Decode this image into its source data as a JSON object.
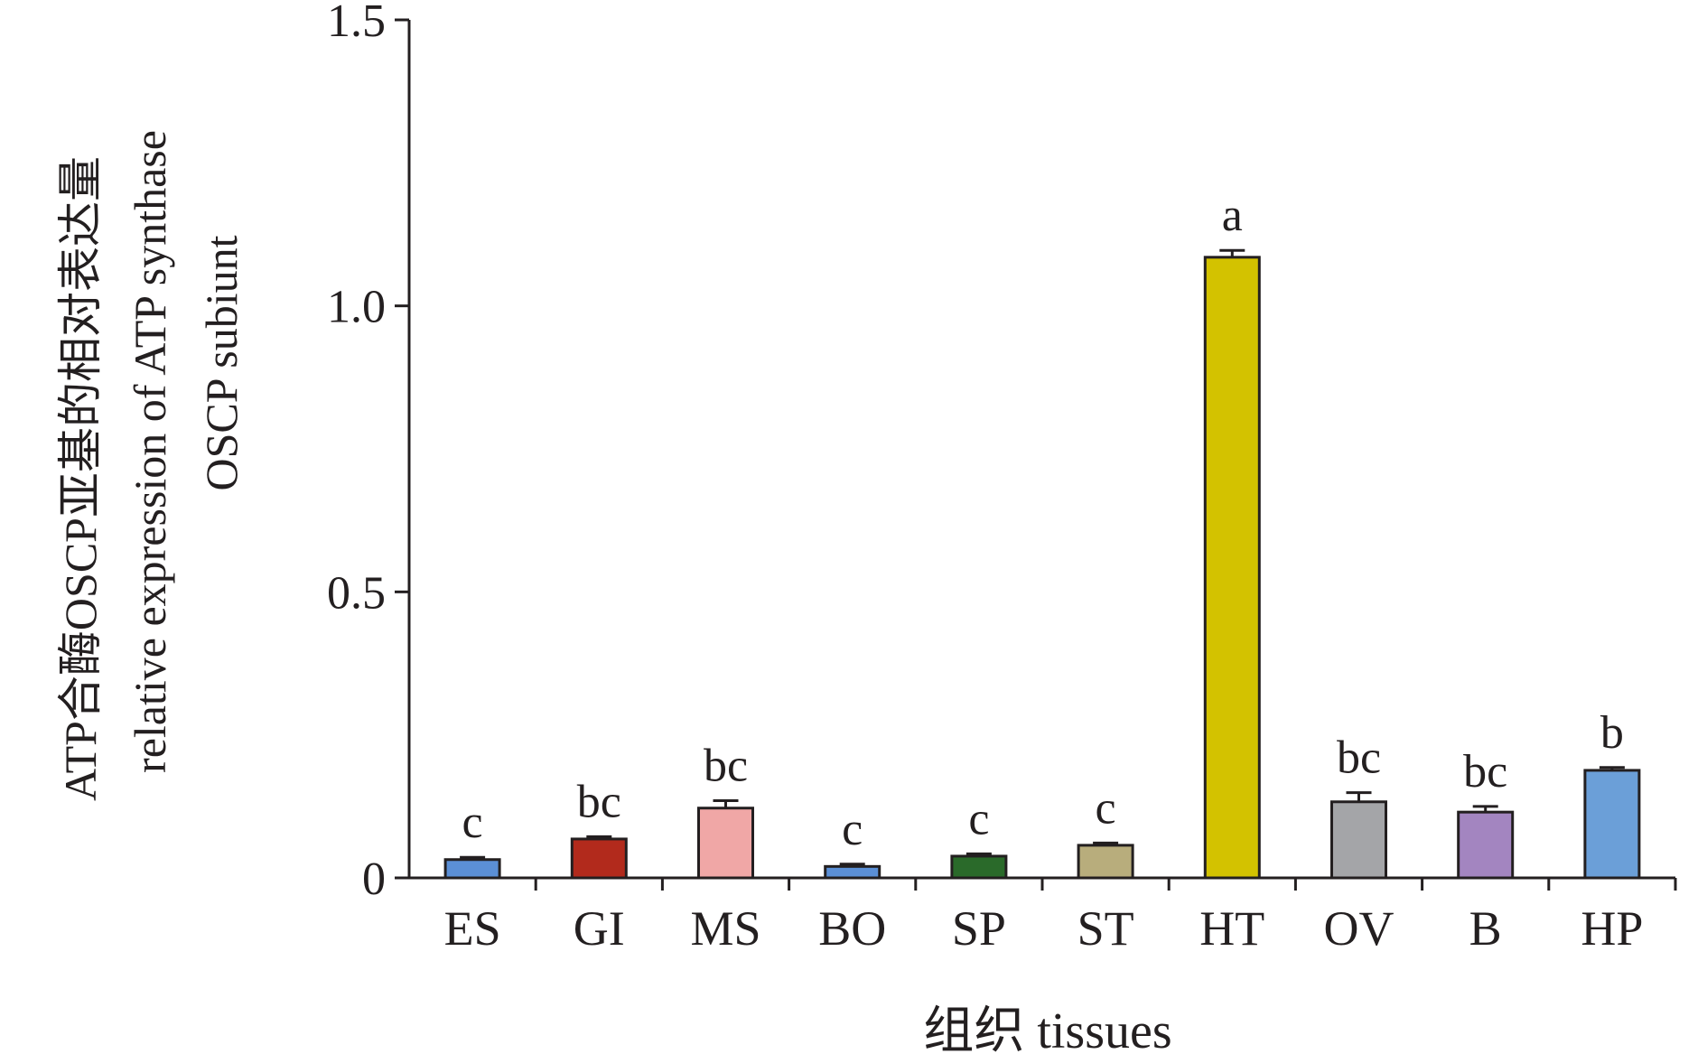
{
  "chart_data": {
    "type": "bar",
    "categories": [
      "ES",
      "GI",
      "MS",
      "BO",
      "SP",
      "ST",
      "HT",
      "OV",
      "B",
      "HP"
    ],
    "values": [
      0.032,
      0.068,
      0.122,
      0.02,
      0.038,
      0.057,
      1.085,
      0.133,
      0.115,
      0.188
    ],
    "errors": [
      0.004,
      0.004,
      0.013,
      0.004,
      0.004,
      0.004,
      0.012,
      0.016,
      0.01,
      0.005
    ],
    "significance": [
      "c",
      "bc",
      "bc",
      "c",
      "c",
      "c",
      "a",
      "bc",
      "bc",
      "b"
    ],
    "colors": [
      "#5b8fd6",
      "#b22a1c",
      "#f0a7a6",
      "#5b8fd6",
      "#2a6a2a",
      "#b8ad7c",
      "#d3c200",
      "#a4a5a8",
      "#a385c0",
      "#6b9fd8"
    ],
    "ylabel_lines": [
      "ATP合酶OSCP亚基的相对表达量",
      "relative expression of ATP synthase",
      "OSCP subiunt"
    ],
    "xlabel": "组织 tissues",
    "ylim": [
      0,
      1.5
    ],
    "yticks": [
      0,
      0.5,
      1.0,
      1.5
    ],
    "ytick_labels": [
      "0",
      "0.5",
      "1.0",
      "1.5"
    ],
    "grid": false
  }
}
